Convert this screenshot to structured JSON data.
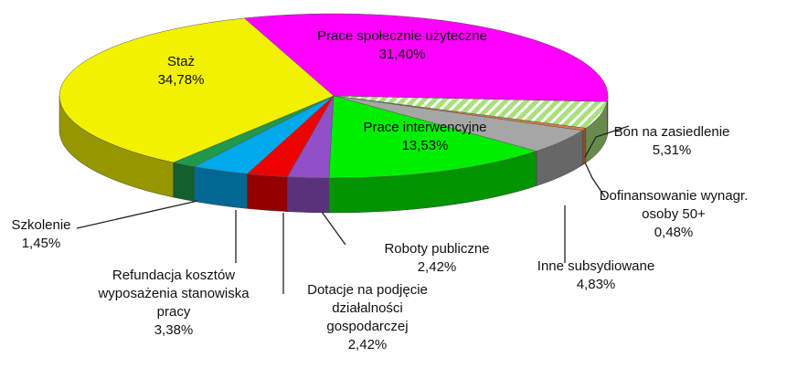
{
  "chart_data": {
    "type": "pie3d",
    "categories": [
      "Prace społecznie użyteczne",
      "Bon na zasiedlenie",
      "Dofinansowanie wynagr. osoby 50+",
      "Inne subsydiowane",
      "Prace interwencyjne",
      "Roboty publiczne",
      "Dotacje na podjęcie działalności gospodarczej",
      "Refundacja kosztów wyposażenia stanowiska pracy",
      "Szkolenie",
      "Staż"
    ],
    "values": [
      31.4,
      5.31,
      0.48,
      4.83,
      13.53,
      2.42,
      2.42,
      3.38,
      1.45,
      34.78
    ],
    "value_labels": [
      "31,40%",
      "5,31%",
      "0,48%",
      "4,83%",
      "13,53%",
      "2,42%",
      "2,42%",
      "3,38%",
      "1,45%",
      "34,78%"
    ],
    "colors": [
      "#ff00ff",
      "#a8e07a",
      "#d9823b",
      "#a6a6a6",
      "#00ee00",
      "#9150c8",
      "#ee0000",
      "#00a8ec",
      "#1f9a48",
      "#f2f200"
    ]
  }
}
